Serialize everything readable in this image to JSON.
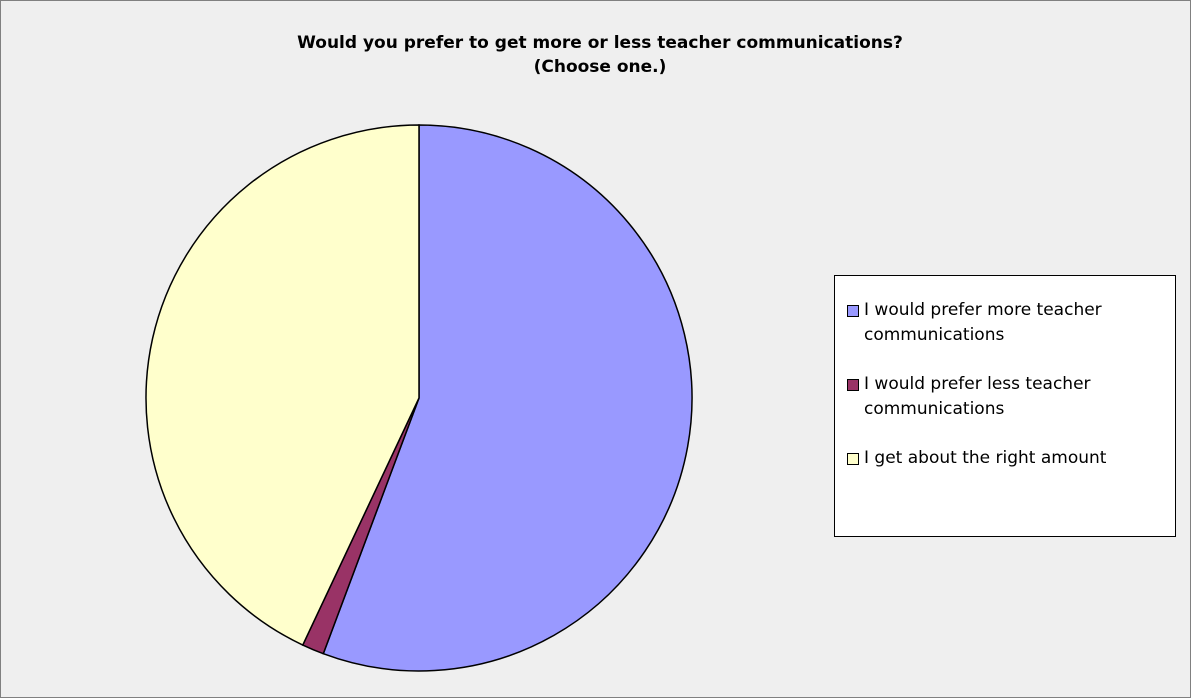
{
  "chart_data": {
    "type": "pie",
    "title": [
      "Would you prefer to get more or less teacher communications?",
      "(Choose one.)"
    ],
    "categories": [
      "I would prefer more teacher communications",
      "I would prefer less teacher communications",
      "I get about the right amount"
    ],
    "values": [
      55.7,
      1.3,
      43
    ],
    "colors": [
      "#9999ff",
      "#993366",
      "#ffffcc"
    ],
    "legend": "right"
  }
}
